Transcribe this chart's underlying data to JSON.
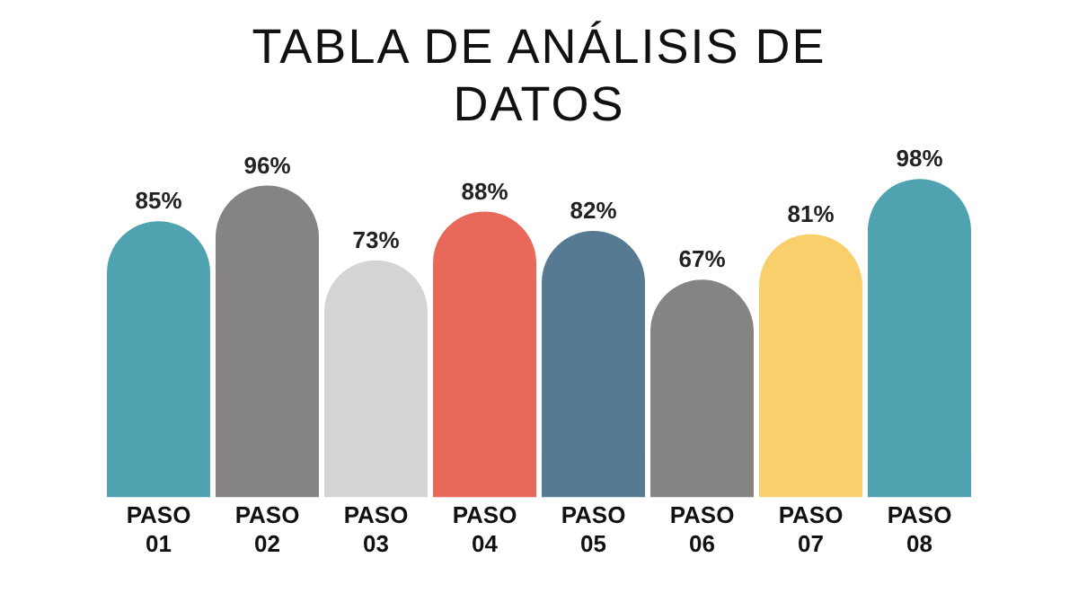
{
  "chart_data": {
    "type": "bar",
    "title": "TABLA DE ANÁLISIS DE DATOS",
    "categories": [
      "PASO 01",
      "PASO 02",
      "PASO 03",
      "PASO 04",
      "PASO 05",
      "PASO 06",
      "PASO 07",
      "PASO 08"
    ],
    "values": [
      85,
      96,
      73,
      88,
      82,
      67,
      81,
      98
    ],
    "value_labels": [
      "85%",
      "96%",
      "73%",
      "88%",
      "82%",
      "67%",
      "81%",
      "98%"
    ],
    "colors": [
      "#4fa3b0",
      "#858482",
      "#d3d5d4",
      "#e8685a",
      "#557a91",
      "#858482",
      "#f9cf6b",
      "#4fa3b0"
    ],
    "grid": false,
    "legend": false
  }
}
